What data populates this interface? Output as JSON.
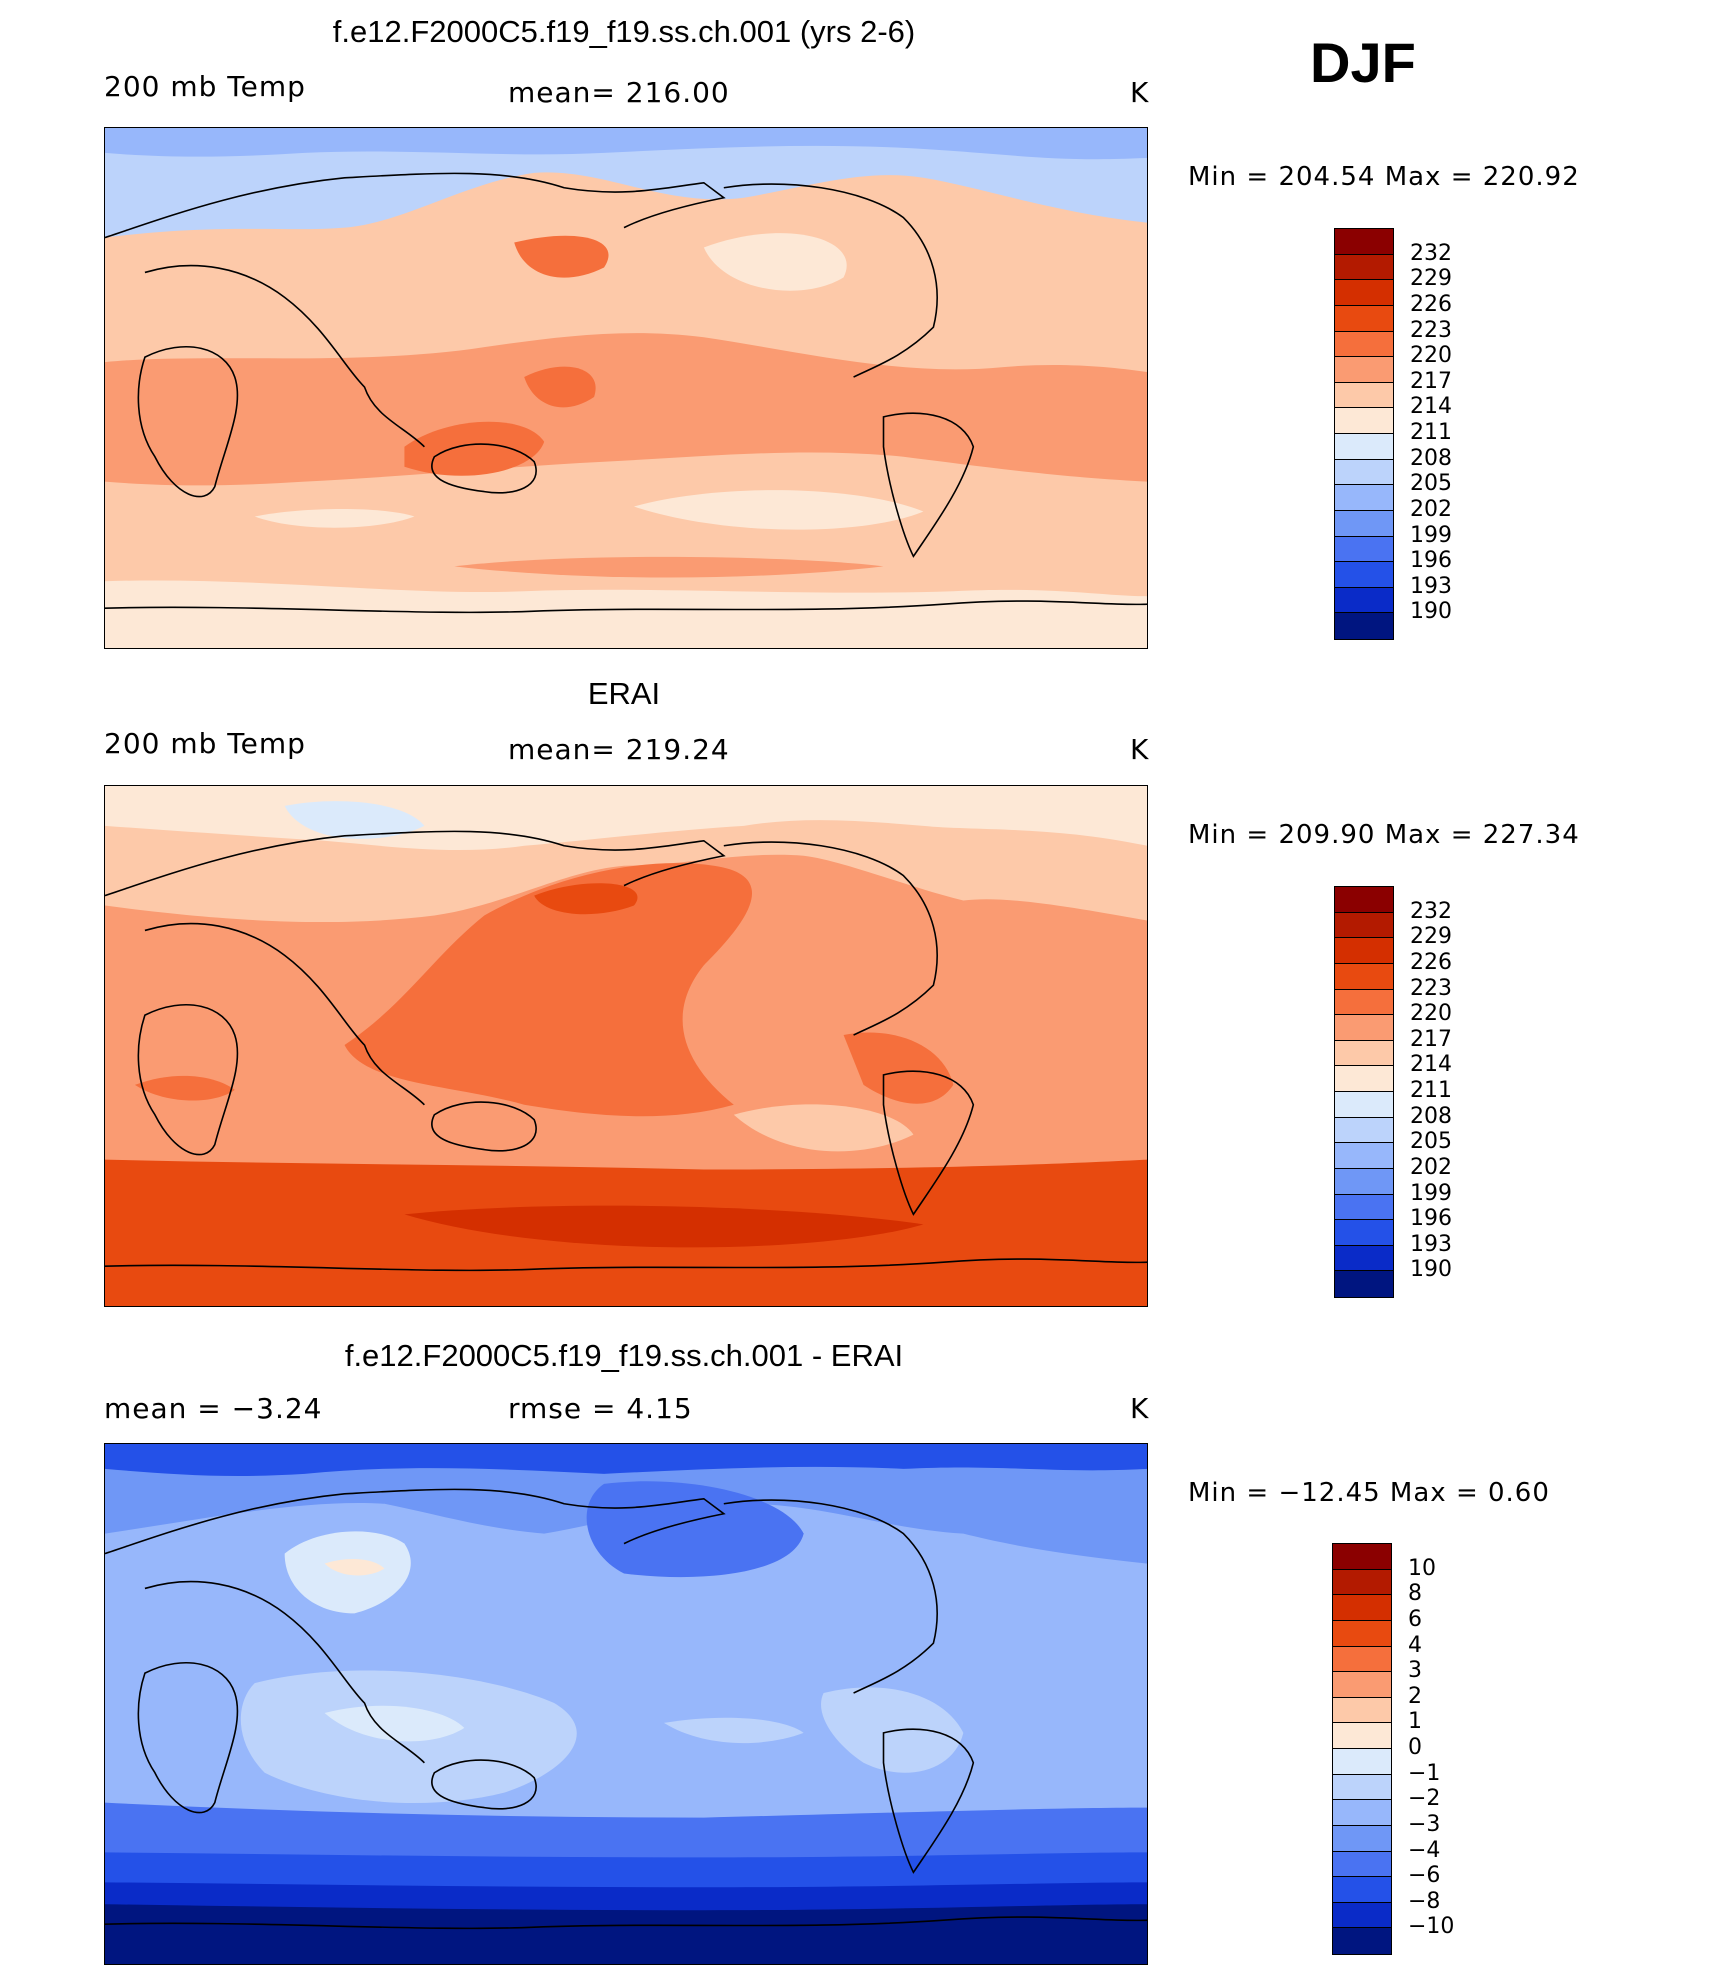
{
  "season": "DJF",
  "panels": [
    {
      "title": "f.e12.F2000C5.f19_f19.ss.ch.001 (yrs 2-6)",
      "left": "200 mb Temp",
      "center": "mean=  216.00",
      "right": "K",
      "minmax": "Min  =  204.54  Max  =  220.92",
      "map_alt": "Model 200 mb temperature map"
    },
    {
      "title": "ERAI",
      "left": "200 mb Temp",
      "center": "mean=  219.24",
      "right": "K",
      "minmax": "Min  =  209.90  Max  =  227.34",
      "map_alt": "ERAI 200 mb temperature map"
    },
    {
      "title": "f.e12.F2000C5.f19_f19.ss.ch.001 - ERAI",
      "left": "mean  =    −3.24",
      "center": "rmse  =      4.15",
      "right": "K",
      "minmax": "Min  =  −12.45  Max  =      0.60",
      "map_alt": "Model minus ERAI difference map"
    }
  ],
  "colorbars": {
    "temperature": {
      "labels": [
        "232",
        "229",
        "226",
        "223",
        "220",
        "217",
        "214",
        "211",
        "208",
        "205",
        "202",
        "199",
        "196",
        "193",
        "190"
      ],
      "colors": [
        "#8b0000",
        "#b31a00",
        "#d42f00",
        "#e84a10",
        "#f56f3c",
        "#fa9b72",
        "#fdc9a9",
        "#fde8d6",
        "#dbeafb",
        "#bcd3fb",
        "#97b7fb",
        "#6f97f6",
        "#4a73f2",
        "#2451e8",
        "#0a2bc8",
        "#001580"
      ]
    },
    "difference": {
      "labels": [
        "10",
        "8",
        "6",
        "4",
        "3",
        "2",
        "1",
        "0",
        "−1",
        "−2",
        "−3",
        "−4",
        "−6",
        "−8",
        "−10"
      ],
      "colors": [
        "#8b0000",
        "#b31a00",
        "#d42f00",
        "#e84a10",
        "#f56f3c",
        "#fa9b72",
        "#fdc9a9",
        "#fde8d6",
        "#dbeafb",
        "#bcd3fb",
        "#97b7fb",
        "#6f97f6",
        "#4a73f2",
        "#2451e8",
        "#0a2bc8",
        "#001580"
      ]
    }
  }
}
